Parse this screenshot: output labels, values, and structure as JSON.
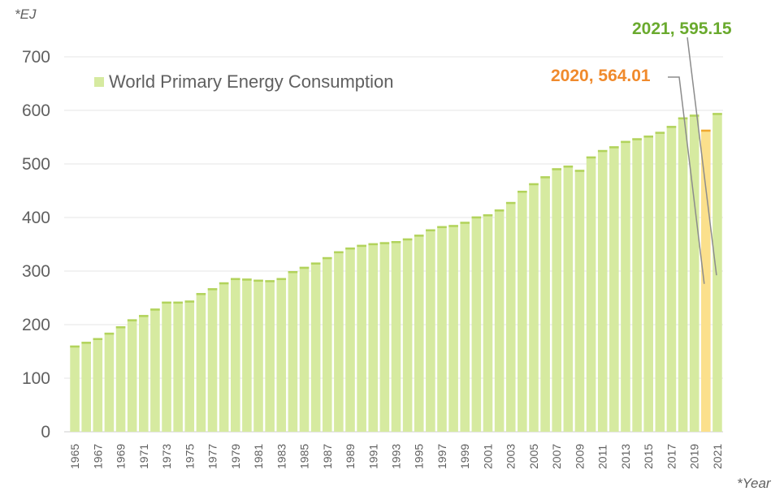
{
  "y_unit": "*EJ",
  "x_unit": "*Year",
  "colors": {
    "bar": "#d6eaa0",
    "bar_top": "#b2d35c",
    "highlight": "#fbe08c",
    "highlight_top": "#f0a830",
    "label_2020": "#f08a2c",
    "label_2021": "#6aaa2e",
    "grid": "#e5e5e5",
    "axis_text": "#606060"
  },
  "annotations": {
    "a2020": "2020, 564.01",
    "a2021": "2021, 595.15"
  },
  "chart_data": {
    "type": "bar",
    "legend": "World Primary Energy Consumption",
    "legend_position": "top-left",
    "grid": true,
    "ylim": [
      0,
      700
    ],
    "yticks": [
      0,
      100,
      200,
      300,
      400,
      500,
      600,
      700
    ],
    "tick_labels_x": [
      "1965",
      "1967",
      "1969",
      "1971",
      "1973",
      "1975",
      "1977",
      "1979",
      "1981",
      "1983",
      "1985",
      "1987",
      "1989",
      "1991",
      "1993",
      "1995",
      "1997",
      "1999",
      "2001",
      "2003",
      "2005",
      "2007",
      "2009",
      "2011",
      "2013",
      "2015",
      "2017",
      "2019",
      "2021"
    ],
    "categories": [
      "1965",
      "1966",
      "1967",
      "1968",
      "1969",
      "1970",
      "1971",
      "1972",
      "1973",
      "1974",
      "1975",
      "1976",
      "1977",
      "1978",
      "1979",
      "1980",
      "1981",
      "1982",
      "1983",
      "1984",
      "1985",
      "1986",
      "1987",
      "1988",
      "1989",
      "1990",
      "1991",
      "1992",
      "1993",
      "1994",
      "1995",
      "1996",
      "1997",
      "1998",
      "1999",
      "2000",
      "2001",
      "2002",
      "2003",
      "2004",
      "2005",
      "2006",
      "2007",
      "2008",
      "2009",
      "2010",
      "2011",
      "2012",
      "2013",
      "2014",
      "2015",
      "2016",
      "2017",
      "2018",
      "2019",
      "2020",
      "2021"
    ],
    "values": [
      161,
      168,
      175,
      185,
      197,
      210,
      218,
      230,
      243,
      243,
      245,
      259,
      268,
      279,
      287,
      286,
      284,
      283,
      287,
      300,
      308,
      316,
      326,
      337,
      344,
      349,
      352,
      354,
      356,
      361,
      368,
      378,
      384,
      386,
      392,
      402,
      406,
      415,
      429,
      450,
      464,
      477,
      492,
      497,
      489,
      514,
      526,
      533,
      543,
      548,
      553,
      560,
      571,
      587,
      592,
      564.01,
      595.15
    ],
    "highlight": "2020"
  }
}
